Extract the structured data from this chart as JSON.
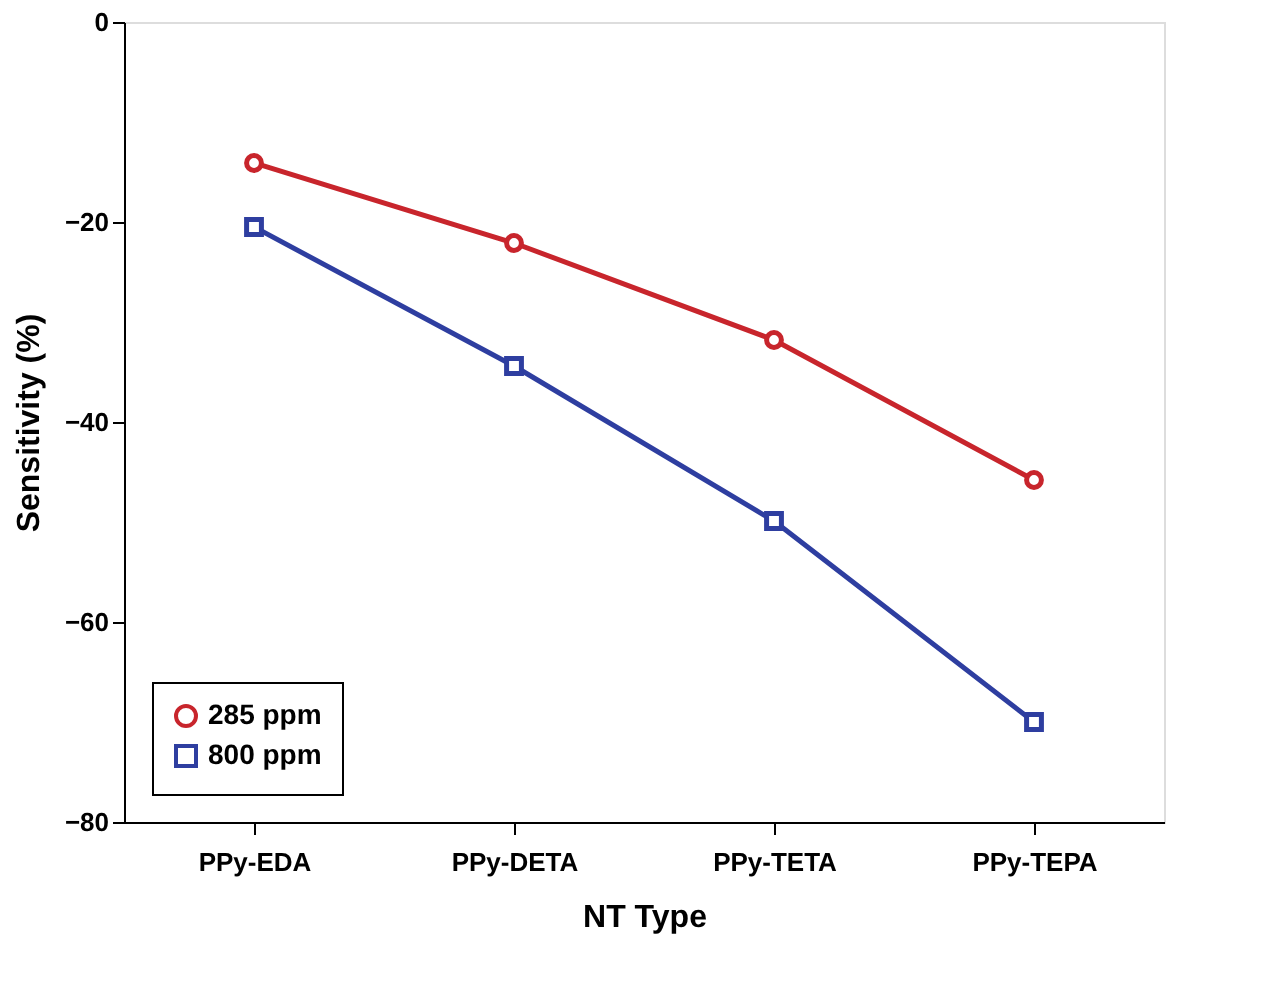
{
  "chart_data": {
    "type": "line",
    "xlabel": "NT Type",
    "ylabel": "Sensitivity (%)",
    "categories": [
      "PPy-EDA",
      "PPy-DETA",
      "PPy-TETA",
      "PPy-TEPA"
    ],
    "series": [
      {
        "name": "285 ppm",
        "color": "#c8252c",
        "marker": "circle",
        "values": [
          -14.1,
          -22.1,
          -31.8,
          -45.8
        ]
      },
      {
        "name": "800 ppm",
        "color": "#2e3ea0",
        "marker": "square",
        "values": [
          -20.5,
          -34.4,
          -49.9,
          -70.0
        ]
      }
    ],
    "ylim": [
      -80,
      0
    ],
    "yticks": [
      -80,
      -60,
      -40,
      -20,
      0
    ],
    "grid": false,
    "legend": "bottom left",
    "line_style": "solid"
  }
}
